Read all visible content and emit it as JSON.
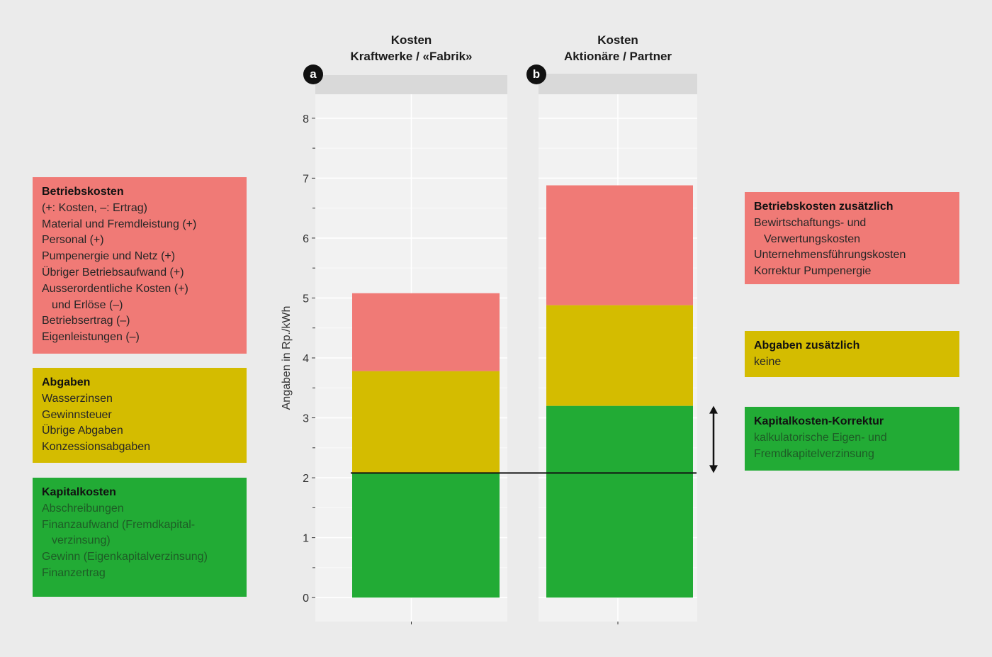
{
  "panels": [
    {
      "badge": "a",
      "title_lines": [
        "Kosten",
        "Kraftwerke / «Fabrik»"
      ]
    },
    {
      "badge": "b",
      "title_lines": [
        "Kosten",
        "Aktionäre / Partner"
      ]
    }
  ],
  "chart_data": {
    "type": "bar",
    "stacked": true,
    "categories": [
      "Kosten Kraftwerke / «Fabrik»",
      "Kosten Aktionäre / Partner"
    ],
    "series": [
      {
        "name": "Kapitalkosten",
        "color": "#22ab35",
        "values": [
          2.08,
          3.2
        ]
      },
      {
        "name": "Abgaben",
        "color": "#d4bc00",
        "values": [
          1.7,
          1.68
        ]
      },
      {
        "name": "Betriebskosten",
        "color": "#f07a76",
        "values": [
          1.3,
          2.0
        ]
      }
    ],
    "ylabel": "Angaben in Rp./kWh",
    "ylim": [
      -0.4,
      8.4
    ],
    "yticks": [
      "0",
      "1",
      "2",
      "3",
      "4",
      "5",
      "6",
      "7",
      "8"
    ],
    "reference_line": 2.08,
    "arrow_range": [
      2.08,
      3.2
    ],
    "grid": true
  },
  "legend_left": [
    {
      "color": "#f07a76",
      "title": "Betriebskosten",
      "items": [
        {
          "text": "(+: Kosten, –: Ertrag)",
          "indent": false
        },
        {
          "text": "Material und Fremdleistung (+)",
          "indent": false
        },
        {
          "text": "Personal (+)",
          "indent": false
        },
        {
          "text": "Pumpenergie und Netz (+)",
          "indent": false
        },
        {
          "text": "Übriger Betriebsaufwand (+)",
          "indent": false
        },
        {
          "text": "Ausserordentliche Kosten (+)",
          "indent": false
        },
        {
          "text": "und Erlöse (–)",
          "indent": true
        },
        {
          "text": "Betriebsertrag (–)",
          "indent": false
        },
        {
          "text": "Eigenleistungen (–)",
          "indent": false
        }
      ]
    },
    {
      "color": "#d4bc00",
      "title": "Abgaben",
      "items": [
        {
          "text": "Wasserzinsen",
          "indent": false
        },
        {
          "text": "Gewinnsteuer",
          "indent": false
        },
        {
          "text": "Übrige Abgaben",
          "indent": false
        },
        {
          "text": "Konzessionsabgaben",
          "indent": false
        }
      ]
    },
    {
      "color": "#22ab35",
      "title": "Kapitalkosten",
      "items": [
        {
          "text": "Abschreibungen",
          "indent": false
        },
        {
          "text": "Finanzaufwand (Fremdkapital-",
          "indent": false
        },
        {
          "text": "verzinsung)",
          "indent": true
        },
        {
          "text": "Gewinn (Eigenkapitalverzinsung)",
          "indent": false
        },
        {
          "text": "Finanzertrag",
          "indent": false
        }
      ]
    }
  ],
  "legend_right": [
    {
      "color": "#f07a76",
      "title": "Betriebskosten zusätzlich",
      "items": [
        {
          "text": "Bewirtschaftungs- und",
          "indent": false
        },
        {
          "text": "Verwertungskosten",
          "indent": true
        },
        {
          "text": "Unternehmensführungskosten",
          "indent": false
        },
        {
          "text": "Korrektur Pumpenergie",
          "indent": false
        }
      ]
    },
    {
      "color": "#d4bc00",
      "title": "Abgaben zusätzlich",
      "items": [
        {
          "text": "keine",
          "indent": false
        }
      ]
    },
    {
      "color": "#22ab35",
      "title": "Kapitalkosten-Korrektur",
      "items": [
        {
          "text": "kalkulatorische Eigen- und",
          "indent": false
        },
        {
          "text": "Fremdkapitelverzinsung",
          "indent": false
        }
      ]
    }
  ]
}
